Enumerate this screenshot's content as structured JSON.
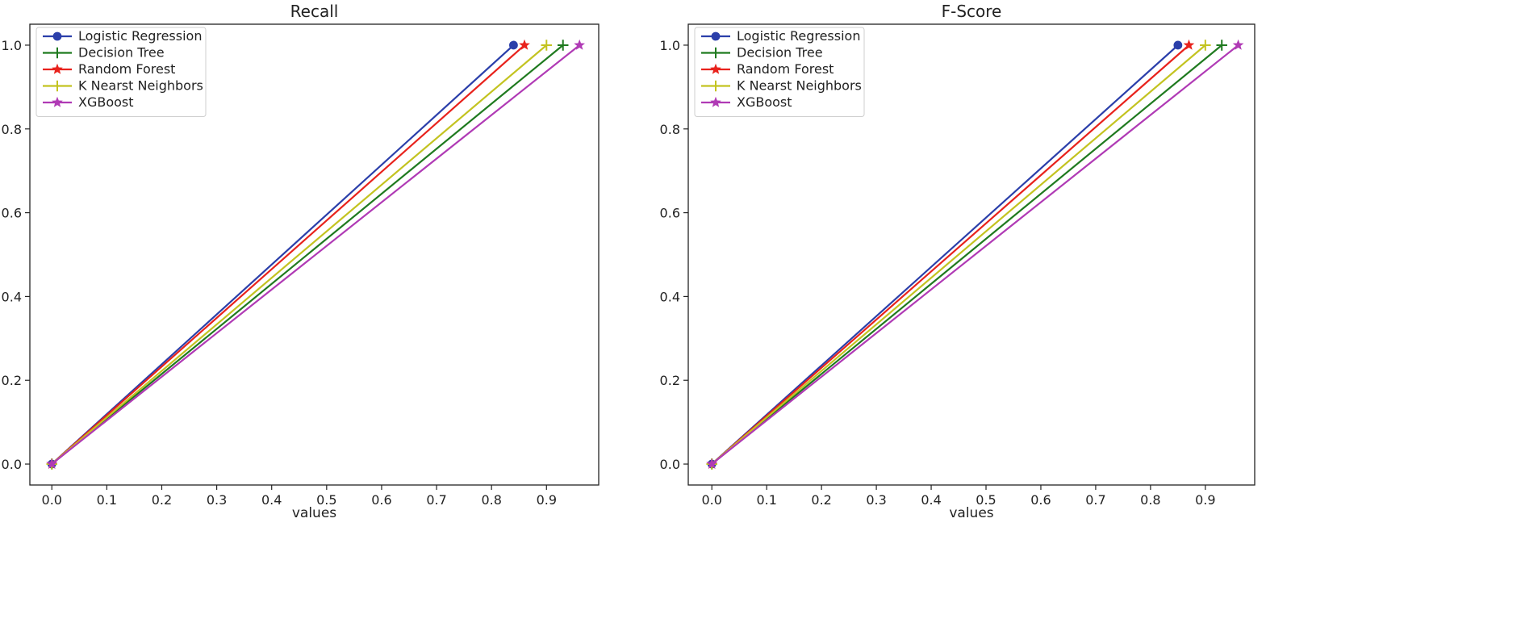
{
  "chart_data": [
    {
      "type": "line",
      "title": "Recall",
      "xlabel": "values",
      "ylabel": "",
      "xlim": [
        -0.04,
        0.995
      ],
      "ylim": [
        -0.05,
        1.05
      ],
      "xticks": [
        "0.0",
        "0.1",
        "0.2",
        "0.3",
        "0.4",
        "0.5",
        "0.6",
        "0.7",
        "0.8",
        "0.9"
      ],
      "yticks": [
        "0.0",
        "0.2",
        "0.4",
        "0.6",
        "0.8",
        "1.0"
      ],
      "legend_position": "top-left",
      "grid": false,
      "series": [
        {
          "name": "Logistic Regression",
          "x": [
            0,
            0.84
          ],
          "y": [
            0,
            1
          ],
          "color": "#2b3faa",
          "marker": "circle"
        },
        {
          "name": "Decision Tree",
          "x": [
            0,
            0.93
          ],
          "y": [
            0,
            1
          ],
          "color": "#1f7a1f",
          "marker": "plus"
        },
        {
          "name": "Random Forest",
          "x": [
            0,
            0.86
          ],
          "y": [
            0,
            1
          ],
          "color": "#e8221c",
          "marker": "star"
        },
        {
          "name": "K Nearst Neighbors",
          "x": [
            0,
            0.9
          ],
          "y": [
            0,
            1
          ],
          "color": "#c3c320",
          "marker": "plus"
        },
        {
          "name": "XGBoost",
          "x": [
            0,
            0.96
          ],
          "y": [
            0,
            1
          ],
          "color": "#b03ab5",
          "marker": "star"
        }
      ]
    },
    {
      "type": "line",
      "title": "F-Score",
      "xlabel": "values",
      "ylabel": "",
      "xlim": [
        -0.043,
        0.99
      ],
      "ylim": [
        -0.05,
        1.05
      ],
      "xticks": [
        "0.0",
        "0.1",
        "0.2",
        "0.3",
        "0.4",
        "0.5",
        "0.6",
        "0.7",
        "0.8",
        "0.9"
      ],
      "yticks": [
        "0.0",
        "0.2",
        "0.4",
        "0.6",
        "0.8",
        "1.0"
      ],
      "legend_position": "top-left",
      "grid": false,
      "series": [
        {
          "name": "Logistic Regression",
          "x": [
            0,
            0.85
          ],
          "y": [
            0,
            1
          ],
          "color": "#2b3faa",
          "marker": "circle"
        },
        {
          "name": "Decision Tree",
          "x": [
            0,
            0.93
          ],
          "y": [
            0,
            1
          ],
          "color": "#1f7a1f",
          "marker": "plus"
        },
        {
          "name": "Random Forest",
          "x": [
            0,
            0.87
          ],
          "y": [
            0,
            1
          ],
          "color": "#e8221c",
          "marker": "star"
        },
        {
          "name": "K Nearst Neighbors",
          "x": [
            0,
            0.9
          ],
          "y": [
            0,
            1
          ],
          "color": "#c3c320",
          "marker": "plus"
        },
        {
          "name": "XGBoost",
          "x": [
            0,
            0.96
          ],
          "y": [
            0,
            1
          ],
          "color": "#b03ab5",
          "marker": "star"
        }
      ]
    }
  ]
}
